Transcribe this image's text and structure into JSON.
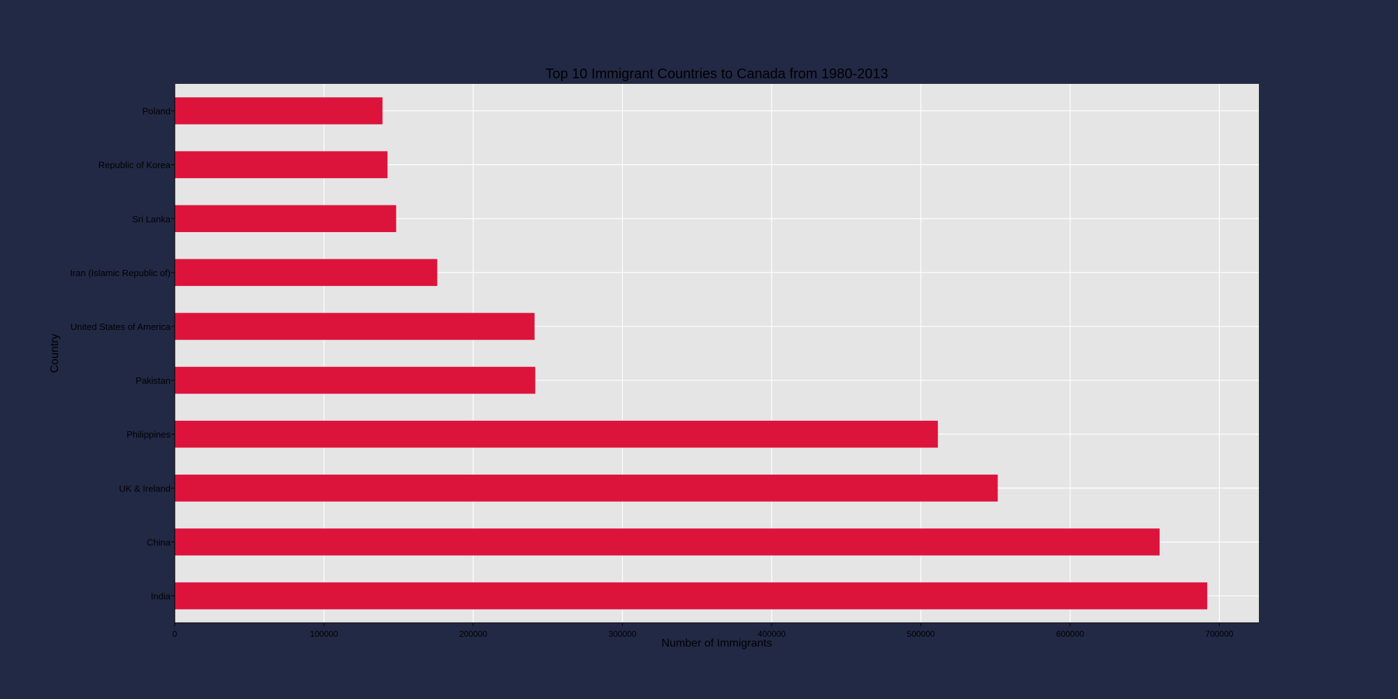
{
  "chart_data": {
    "type": "bar",
    "orientation": "horizontal",
    "title": "Top 10 Immigrant Countries to Canada from 1980-2013",
    "xlabel": "Number of Immigrants",
    "ylabel": "Country",
    "categories": [
      "India",
      "China",
      "UK & Ireland",
      "Philippines",
      "Pakistan",
      "United States of America",
      "Iran (Islamic Republic of)",
      "Sri Lanka",
      "Republic of Korea",
      "Poland"
    ],
    "values": [
      691904,
      659962,
      551500,
      511391,
      241600,
      241122,
      175923,
      148358,
      142581,
      139241
    ],
    "xlim": [
      0,
      726500
    ],
    "xticks": [
      0,
      100000,
      200000,
      300000,
      400000,
      500000,
      600000,
      700000
    ],
    "xtick_labels": [
      "0",
      "100000",
      "200000",
      "300000",
      "400000",
      "500000",
      "600000",
      "700000"
    ],
    "grid": true,
    "legend": "none",
    "colors": {
      "bar": "#DC143C",
      "plot_background": "#E5E5E5",
      "page_background": "#222945",
      "grid": "#FFFFFF",
      "text": "#000000"
    }
  }
}
